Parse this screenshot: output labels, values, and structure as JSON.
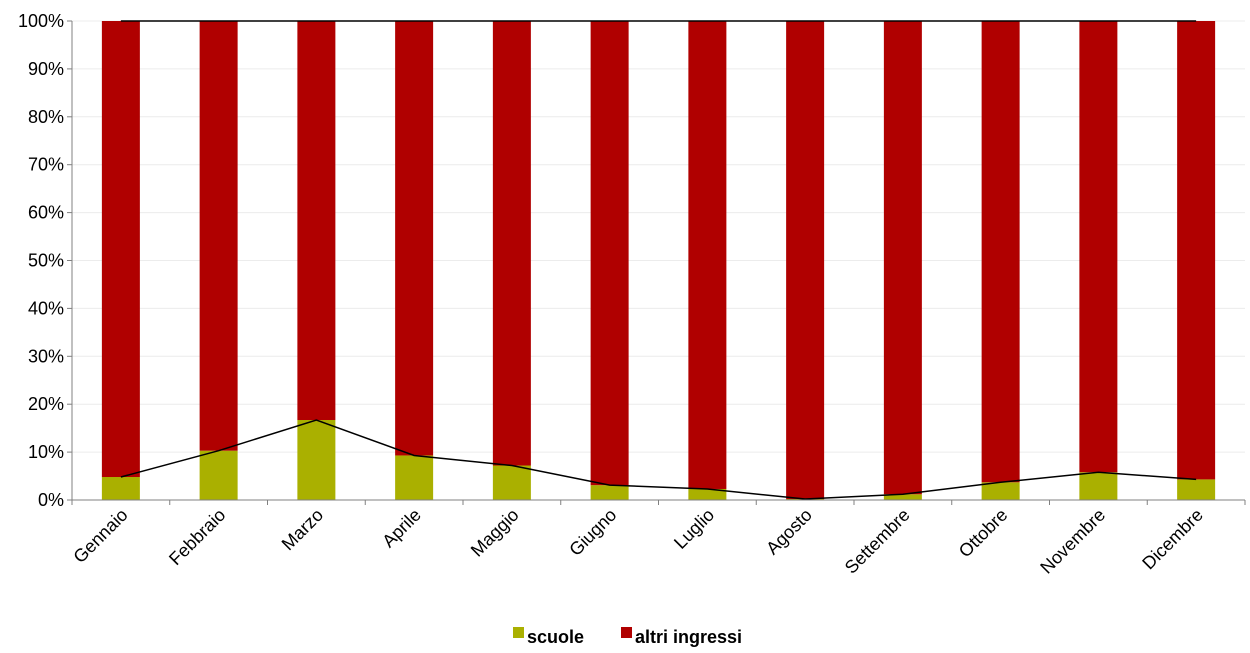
{
  "chart_data": {
    "type": "bar",
    "stacked": true,
    "percent": true,
    "categories": [
      "Gennaio",
      "Febbraio",
      "Marzo",
      "Aprile",
      "Maggio",
      "Giugno",
      "Luglio",
      "Agosto",
      "Settembre",
      "Ottobre",
      "Novembre",
      "Dicembre"
    ],
    "series": [
      {
        "name": "scuole",
        "color": "#aab000",
        "values": [
          4.8,
          10.3,
          16.7,
          9.3,
          7.2,
          3.1,
          2.3,
          0.2,
          1.2,
          3.7,
          5.8,
          4.3
        ]
      },
      {
        "name": "altri ingressi",
        "color": "#b00000",
        "values": [
          95.2,
          89.7,
          83.3,
          90.7,
          92.8,
          96.9,
          97.7,
          99.8,
          98.8,
          96.3,
          94.2,
          95.7
        ]
      }
    ],
    "line_overlay": {
      "series": "scuole",
      "color": "#000000"
    },
    "ylim": [
      0,
      100
    ],
    "yticks": [
      "0%",
      "10%",
      "20%",
      "30%",
      "40%",
      "50%",
      "60%",
      "70%",
      "80%",
      "90%",
      "100%"
    ],
    "grid": true,
    "legend": "bottom-center",
    "title": "",
    "xlabel": "",
    "ylabel": ""
  }
}
